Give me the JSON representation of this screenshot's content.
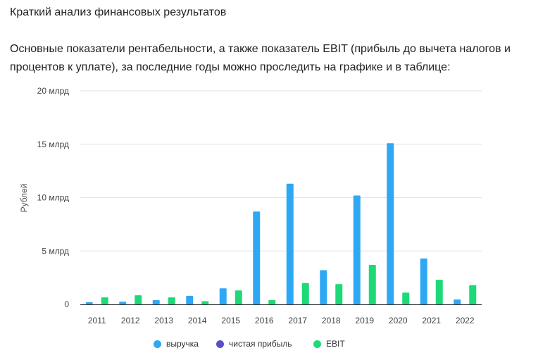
{
  "page": {
    "heading": "Краткий анализ финансовых результатов",
    "intro": "Основные показатели рентабельности, а также показатель EBIT (прибыль до вычета налогов и процентов к уплате), за последние годы можно проследить на графике и в таблице:"
  },
  "chart_data": {
    "type": "bar",
    "title": "",
    "xlabel": "",
    "ylabel": "Рублей",
    "ylim": [
      0,
      20000000000
    ],
    "yticks": [
      {
        "value": 0,
        "label": "0"
      },
      {
        "value": 5000000000,
        "label": "5 млрд"
      },
      {
        "value": 10000000000,
        "label": "10 млрд"
      },
      {
        "value": 15000000000,
        "label": "15 млрд"
      },
      {
        "value": 20000000000,
        "label": "20 млрд"
      }
    ],
    "grid": true,
    "legend_position": "bottom",
    "categories": [
      "2011",
      "2012",
      "2013",
      "2014",
      "2015",
      "2016",
      "2017",
      "2018",
      "2019",
      "2020",
      "2021",
      "2022"
    ],
    "series": [
      {
        "name": "выручка",
        "color": "#2ea8f5",
        "values": [
          200000000,
          250000000,
          400000000,
          800000000,
          1500000000,
          8700000000,
          11300000000,
          3200000000,
          10200000000,
          15100000000,
          4300000000,
          450000000
        ]
      },
      {
        "name": "чистая прибыль",
        "color": "#5b4fc9",
        "values": [
          0,
          0,
          0,
          0,
          0,
          0,
          0,
          0,
          0,
          0,
          0,
          0
        ]
      },
      {
        "name": "EBIT",
        "color": "#1ed977",
        "values": [
          650000000,
          850000000,
          650000000,
          300000000,
          1300000000,
          400000000,
          2000000000,
          1900000000,
          3700000000,
          1100000000,
          2300000000,
          1800000000
        ]
      }
    ]
  }
}
